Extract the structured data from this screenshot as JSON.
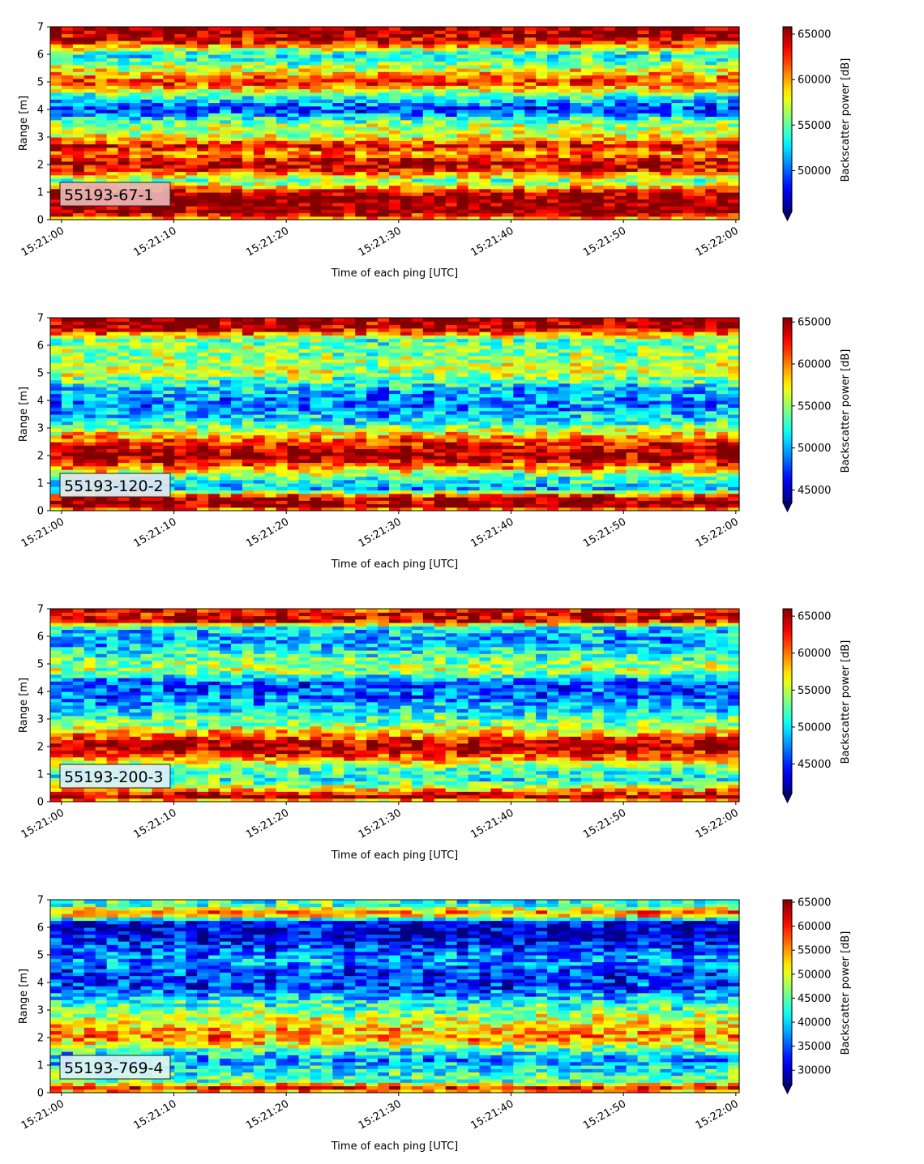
{
  "chart_data": [
    {
      "type": "heatmap",
      "label": "55193-67-1",
      "label_bg": "#e8b4b4",
      "xlabel": "Time of each ping [UTC]",
      "ylabel": "Range [m]",
      "colorbar_label": "Backscatter power [dB]",
      "colormap": "jet",
      "x_ticks": [
        "15:21:00",
        "15:21:10",
        "15:21:20",
        "15:21:30",
        "15:21:40",
        "15:21:50",
        "15:22:00"
      ],
      "x_range_seconds": [
        -1,
        60.3
      ],
      "y_ticks": [
        0,
        1,
        2,
        3,
        4,
        5,
        6,
        7
      ],
      "ylim": [
        0,
        7
      ],
      "cbar_ticks": [
        50000,
        55000,
        60000,
        65000
      ],
      "clim": [
        45500,
        65800
      ],
      "profile": [
        {
          "y": 0.0,
          "v": 58000
        },
        {
          "y": 0.25,
          "v": 65800
        },
        {
          "y": 0.9,
          "v": 65800
        },
        {
          "y": 1.1,
          "v": 62000
        },
        {
          "y": 1.4,
          "v": 55000
        },
        {
          "y": 1.8,
          "v": 63000
        },
        {
          "y": 2.1,
          "v": 65000
        },
        {
          "y": 2.4,
          "v": 60000
        },
        {
          "y": 2.7,
          "v": 64000
        },
        {
          "y": 3.0,
          "v": 58000
        },
        {
          "y": 3.5,
          "v": 56000
        },
        {
          "y": 4.0,
          "v": 49000
        },
        {
          "y": 4.5,
          "v": 54000
        },
        {
          "y": 5.0,
          "v": 63000
        },
        {
          "y": 5.5,
          "v": 57000
        },
        {
          "y": 6.0,
          "v": 53000
        },
        {
          "y": 6.5,
          "v": 64000
        },
        {
          "y": 7.0,
          "v": 65800
        }
      ]
    },
    {
      "type": "heatmap",
      "label": "55193-120-2",
      "label_bg": "#dfe6f2",
      "xlabel": "Time of each ping [UTC]",
      "ylabel": "Range [m]",
      "colorbar_label": "Backscatter power [dB]",
      "colormap": "jet",
      "x_ticks": [
        "15:21:00",
        "15:21:10",
        "15:21:20",
        "15:21:30",
        "15:21:40",
        "15:21:50",
        "15:22:00"
      ],
      "x_range_seconds": [
        -1,
        60.3
      ],
      "y_ticks": [
        0,
        1,
        2,
        3,
        4,
        5,
        6,
        7
      ],
      "ylim": [
        0,
        7
      ],
      "cbar_ticks": [
        45000,
        50000,
        55000,
        60000,
        65000
      ],
      "clim": [
        43500,
        65500
      ],
      "profile": [
        {
          "y": 0.0,
          "v": 58000
        },
        {
          "y": 0.2,
          "v": 65500
        },
        {
          "y": 0.5,
          "v": 64000
        },
        {
          "y": 0.8,
          "v": 50000
        },
        {
          "y": 1.2,
          "v": 53000
        },
        {
          "y": 1.6,
          "v": 60000
        },
        {
          "y": 2.0,
          "v": 65000
        },
        {
          "y": 2.4,
          "v": 63000
        },
        {
          "y": 2.8,
          "v": 58000
        },
        {
          "y": 3.2,
          "v": 52000
        },
        {
          "y": 3.8,
          "v": 49000
        },
        {
          "y": 4.4,
          "v": 50000
        },
        {
          "y": 5.0,
          "v": 56000
        },
        {
          "y": 5.6,
          "v": 55000
        },
        {
          "y": 6.2,
          "v": 54000
        },
        {
          "y": 6.6,
          "v": 64000
        },
        {
          "y": 7.0,
          "v": 65500
        }
      ]
    },
    {
      "type": "heatmap",
      "label": "55193-200-3",
      "label_bg": "#dff0f6",
      "xlabel": "Time of each ping [UTC]",
      "ylabel": "Range [m]",
      "colorbar_label": "Backscatter power [dB]",
      "colormap": "jet",
      "x_ticks": [
        "15:21:00",
        "15:21:10",
        "15:21:20",
        "15:21:30",
        "15:21:40",
        "15:21:50",
        "15:22:00"
      ],
      "x_range_seconds": [
        -1,
        60.3
      ],
      "y_ticks": [
        0,
        1,
        2,
        3,
        4,
        5,
        6,
        7
      ],
      "ylim": [
        0,
        7
      ],
      "cbar_ticks": [
        45000,
        50000,
        55000,
        60000,
        65000
      ],
      "clim": [
        41000,
        66000
      ],
      "profile": [
        {
          "y": 0.0,
          "v": 56000
        },
        {
          "y": 0.2,
          "v": 66000
        },
        {
          "y": 0.45,
          "v": 58000
        },
        {
          "y": 0.8,
          "v": 51000
        },
        {
          "y": 1.2,
          "v": 52000
        },
        {
          "y": 1.6,
          "v": 60000
        },
        {
          "y": 2.0,
          "v": 66000
        },
        {
          "y": 2.4,
          "v": 60000
        },
        {
          "y": 2.8,
          "v": 54000
        },
        {
          "y": 3.3,
          "v": 50000
        },
        {
          "y": 3.8,
          "v": 47000
        },
        {
          "y": 4.3,
          "v": 46000
        },
        {
          "y": 4.8,
          "v": 55000
        },
        {
          "y": 5.3,
          "v": 52000
        },
        {
          "y": 5.8,
          "v": 48000
        },
        {
          "y": 6.3,
          "v": 50000
        },
        {
          "y": 6.6,
          "v": 65000
        },
        {
          "y": 7.0,
          "v": 62000
        }
      ]
    },
    {
      "type": "heatmap",
      "label": "55193-769-4",
      "label_bg": "#dff4f4",
      "xlabel": "Time of each ping [UTC]",
      "ylabel": "Range [m]",
      "colorbar_label": "Backscatter power [dB]",
      "colormap": "jet",
      "x_ticks": [
        "15:21:00",
        "15:21:10",
        "15:21:20",
        "15:21:30",
        "15:21:40",
        "15:21:50",
        "15:22:00"
      ],
      "x_range_seconds": [
        -1,
        60.3
      ],
      "y_ticks": [
        0,
        1,
        2,
        3,
        4,
        5,
        6,
        7
      ],
      "ylim": [
        0,
        7
      ],
      "cbar_ticks": [
        30000,
        35000,
        40000,
        45000,
        50000,
        55000,
        60000,
        65000
      ],
      "clim": [
        27000,
        65500
      ],
      "profile": [
        {
          "y": 0.0,
          "v": 50000
        },
        {
          "y": 0.2,
          "v": 62000
        },
        {
          "y": 0.4,
          "v": 45000
        },
        {
          "y": 0.8,
          "v": 42000
        },
        {
          "y": 1.2,
          "v": 37000
        },
        {
          "y": 1.6,
          "v": 45000
        },
        {
          "y": 2.0,
          "v": 56000
        },
        {
          "y": 2.4,
          "v": 52000
        },
        {
          "y": 2.8,
          "v": 48000
        },
        {
          "y": 3.3,
          "v": 42000
        },
        {
          "y": 3.8,
          "v": 34000
        },
        {
          "y": 4.3,
          "v": 33000
        },
        {
          "y": 4.8,
          "v": 38000
        },
        {
          "y": 5.3,
          "v": 34000
        },
        {
          "y": 5.8,
          "v": 29000
        },
        {
          "y": 6.2,
          "v": 31000
        },
        {
          "y": 6.5,
          "v": 58000
        },
        {
          "y": 6.8,
          "v": 44000
        },
        {
          "y": 7.0,
          "v": 42000
        }
      ]
    }
  ]
}
